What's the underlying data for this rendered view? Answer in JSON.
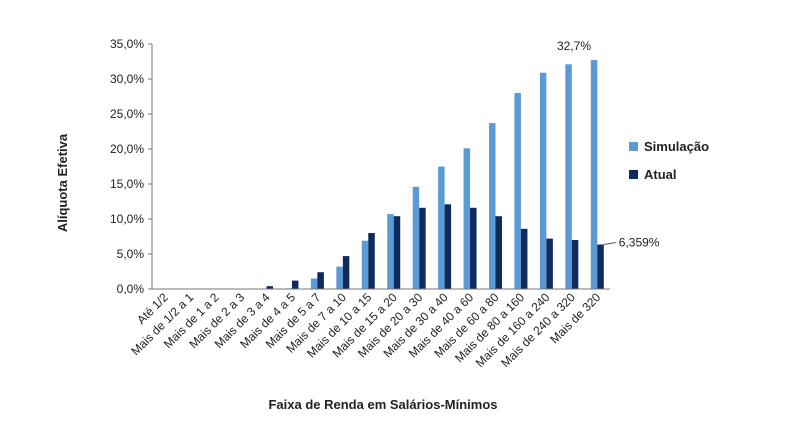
{
  "chart_data": {
    "type": "bar",
    "xlabel": "Faixa de Renda em Salários-Mínimos",
    "ylabel": "Alíquota Efetiva",
    "ylim": [
      0,
      35
    ],
    "ytick_values": [
      0,
      5,
      10,
      15,
      20,
      25,
      30,
      35
    ],
    "ytick_labels": [
      "0,0%",
      "5,0%",
      "10,0%",
      "15,0%",
      "20,0%",
      "25,0%",
      "30,0%",
      "35,0%"
    ],
    "grid": false,
    "legend_position": "right",
    "categories": [
      "Até 1/2",
      "Mais de 1/2 a 1",
      "Mais de 1 a 2",
      "Mais de 2 a 3",
      "Mais de 3 a 4",
      "Mais de 4 a 5",
      "Mais de 5 a 7",
      "Mais de 7 a 10",
      "Mais de 10 a 15",
      "Mais de 15 a 20",
      "Mais de 20 a 30",
      "Mais de 30 a 40",
      "Mais de 40 a 60",
      "Mais de 60 a 80",
      "Mais de 80 a 160",
      "Mais de 160 a 240",
      "Mais de 240 a 320",
      "Mais de 320"
    ],
    "series": [
      {
        "name": "Simulação",
        "color": "#5b9bd5",
        "values": [
          0,
          0,
          0,
          0,
          0,
          0.1,
          1.5,
          3.2,
          6.9,
          10.7,
          14.6,
          17.5,
          20.1,
          23.7,
          28.0,
          30.9,
          32.1,
          32.7
        ]
      },
      {
        "name": "Atual",
        "color": "#0f2a5c",
        "values": [
          0,
          0,
          0,
          0,
          0.4,
          1.2,
          2.4,
          4.7,
          8.0,
          10.4,
          11.6,
          12.1,
          11.6,
          10.4,
          8.6,
          7.2,
          7.0,
          6.359
        ]
      }
    ],
    "annotations": [
      {
        "text": "32,7%",
        "series": "Simulação",
        "category": "Mais de 320"
      },
      {
        "text": "6,359%",
        "series": "Atual",
        "category": "Mais de 320"
      }
    ]
  }
}
